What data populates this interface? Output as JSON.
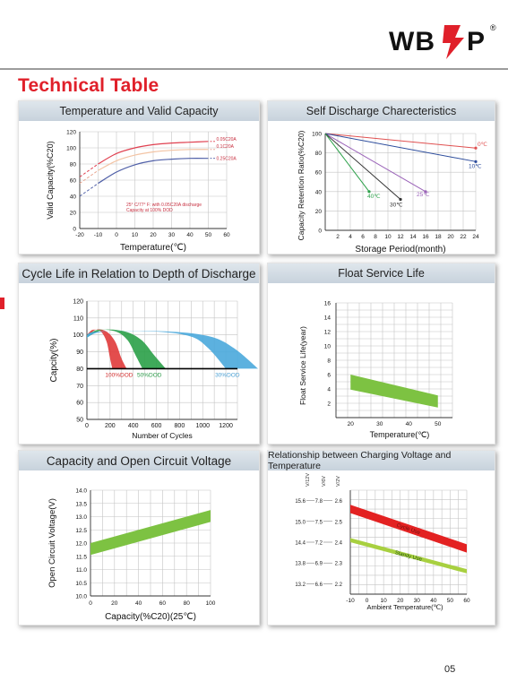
{
  "logo": {
    "text": "WBP",
    "mark": "®"
  },
  "page_title": "Technical Table",
  "page_number": "05",
  "colors": {
    "title_red": "#e0202a",
    "band_green": "#7dc242",
    "band_red": "#e32222"
  },
  "panels": {
    "temp_capacity": {
      "title": "Temperature and Valid Capacity",
      "ylabel": "Valid Capacity(%C20)",
      "xlabel": "Temperature(℃)",
      "xticks": [
        "-20",
        "-10",
        "0",
        "10",
        "20",
        "30",
        "40",
        "50",
        "60"
      ],
      "yticks": [
        "0",
        "20",
        "40",
        "60",
        "80",
        "100",
        "120"
      ],
      "note_line1": "25° C/77° F: with 0.05C20A discharge",
      "note_line2": "Capacity at 100% DOD",
      "chart_data": {
        "type": "line",
        "xlim": [
          -20,
          60
        ],
        "ylim": [
          0,
          120
        ],
        "series": [
          {
            "name": "0.05C20A",
            "x": [
              -20,
              -10,
              0,
              10,
              20,
              30,
              40,
              50
            ],
            "y": [
              64,
              80,
              93,
              100,
              104,
              106,
              107,
              108
            ]
          },
          {
            "name": "0.1C20A",
            "x": [
              -20,
              -10,
              0,
              10,
              20,
              30,
              40,
              50
            ],
            "y": [
              56,
              72,
              84,
              91,
              95,
              97,
              98,
              98
            ]
          },
          {
            "name": "0.25C20A",
            "x": [
              -20,
              -10,
              0,
              10,
              20,
              30,
              40,
              50
            ],
            "y": [
              40,
              56,
              70,
              79,
              84,
              86,
              87,
              87
            ]
          }
        ]
      }
    },
    "self_discharge": {
      "title": "Self Discharge Charecteristics",
      "ylabel": "Capacity Retention Ratio(%C20)",
      "xlabel": "Storage Period(month)",
      "xticks": [
        "2",
        "4",
        "6",
        "8",
        "10",
        "12",
        "14",
        "16",
        "18",
        "20",
        "22",
        "24"
      ],
      "yticks": [
        "0",
        "20",
        "40",
        "60",
        "80",
        "100"
      ],
      "chart_data": {
        "type": "line",
        "xlim": [
          0,
          24
        ],
        "ylim": [
          0,
          100
        ],
        "series": [
          {
            "name": "0℃",
            "x": [
              0,
              24
            ],
            "y": [
              100,
              85
            ]
          },
          {
            "name": "10℃",
            "x": [
              0,
              24
            ],
            "y": [
              100,
              71
            ]
          },
          {
            "name": "25℃",
            "x": [
              0,
              16
            ],
            "y": [
              100,
              40
            ]
          },
          {
            "name": "30℃",
            "x": [
              0,
              12
            ],
            "y": [
              100,
              32
            ]
          },
          {
            "name": "40℃",
            "x": [
              0,
              7
            ],
            "y": [
              100,
              40
            ]
          }
        ]
      }
    },
    "cycle_life": {
      "title": "Cycle Life in Relation to Depth of Discharge",
      "ylabel": "Capcity(%)",
      "xlabel": "Number of Cycles",
      "xticks": [
        "0",
        "200",
        "400",
        "600",
        "800",
        "1000",
        "1200"
      ],
      "yticks": [
        "50",
        "60",
        "70",
        "80",
        "90",
        "100",
        "110",
        "120"
      ],
      "chart_data": {
        "type": "area",
        "xlim": [
          0,
          1300
        ],
        "ylim": [
          50,
          120
        ],
        "series": [
          {
            "name": "100%DOD",
            "x": [
              0,
              50,
              120,
              170,
              200,
              220
            ],
            "y": [
              100,
              103,
              102,
              96,
              86,
              80
            ]
          },
          {
            "name": "50%DOD",
            "x": [
              0,
              100,
              250,
              350,
              420,
              480
            ],
            "y": [
              100,
              103,
              102,
              97,
              88,
              80
            ]
          },
          {
            "name": "30%DOD",
            "x": [
              0,
              100,
              600,
              900,
              1050,
              1200
            ],
            "y": [
              100,
              102,
              102,
              99,
              92,
              80
            ]
          }
        ]
      }
    },
    "float_life": {
      "title": "Float Service Life",
      "ylabel": "Float Service Life(year)",
      "xlabel": "Temperature(℃)",
      "xticks": [
        "20",
        "30",
        "40",
        "50"
      ],
      "yticks": [
        "2",
        "4",
        "6",
        "8",
        "10",
        "12",
        "14",
        "16"
      ],
      "chart_data": {
        "type": "area",
        "xlim": [
          15,
          55
        ],
        "ylim": [
          0,
          16
        ],
        "band": {
          "x": [
            20,
            50
          ],
          "upper": [
            6,
            3.1
          ],
          "lower": [
            3.9,
            1.4
          ]
        }
      }
    },
    "ocv": {
      "title": "Capacity and Open Circuit Voltage",
      "ylabel": "Open Circuit Voltage(V)",
      "xlabel": "Capacity(%C20)(25℃)",
      "xticks": [
        "0",
        "20",
        "40",
        "60",
        "80",
        "100"
      ],
      "yticks": [
        "10.0",
        "10.5",
        "11.0",
        "11.5",
        "12.0",
        "12.5",
        "13.0",
        "13.5",
        "14.0"
      ],
      "chart_data": {
        "type": "area",
        "xlim": [
          0,
          100
        ],
        "ylim": [
          10,
          14
        ],
        "band": {
          "x": [
            0,
            100
          ],
          "upper": [
            12.0,
            13.25
          ],
          "lower": [
            11.55,
            12.8
          ]
        }
      }
    },
    "charging_voltage": {
      "title": "Relationship between Charging Voltage and Temperature",
      "xlabel": "Ambient Temperature(℃)",
      "col_headers": [
        "V/12V",
        "V/6V",
        "V/2V"
      ],
      "rows": [
        [
          "15.6",
          "7.8",
          "2.6"
        ],
        [
          "15.0",
          "7.5",
          "2.5"
        ],
        [
          "14.4",
          "7.2",
          "2.4"
        ],
        [
          "13.8",
          "6.9",
          "2.3"
        ],
        [
          "13.2",
          "6.6",
          "2.2"
        ]
      ],
      "xticks": [
        "-10",
        "0",
        "10",
        "20",
        "30",
        "40",
        "50",
        "60"
      ],
      "chart_data": {
        "type": "area",
        "xlim": [
          -10,
          60
        ],
        "ylim": [
          2.15,
          2.65
        ],
        "series": [
          {
            "name": "Cycle Use",
            "x": [
              -10,
              60
            ],
            "upper": [
              2.58,
              2.39
            ],
            "lower": [
              2.54,
              2.35
            ]
          },
          {
            "name": "Standy Use",
            "x": [
              -10,
              60
            ],
            "upper": [
              2.42,
              2.27
            ],
            "lower": [
              2.4,
              2.25
            ]
          }
        ]
      }
    }
  }
}
